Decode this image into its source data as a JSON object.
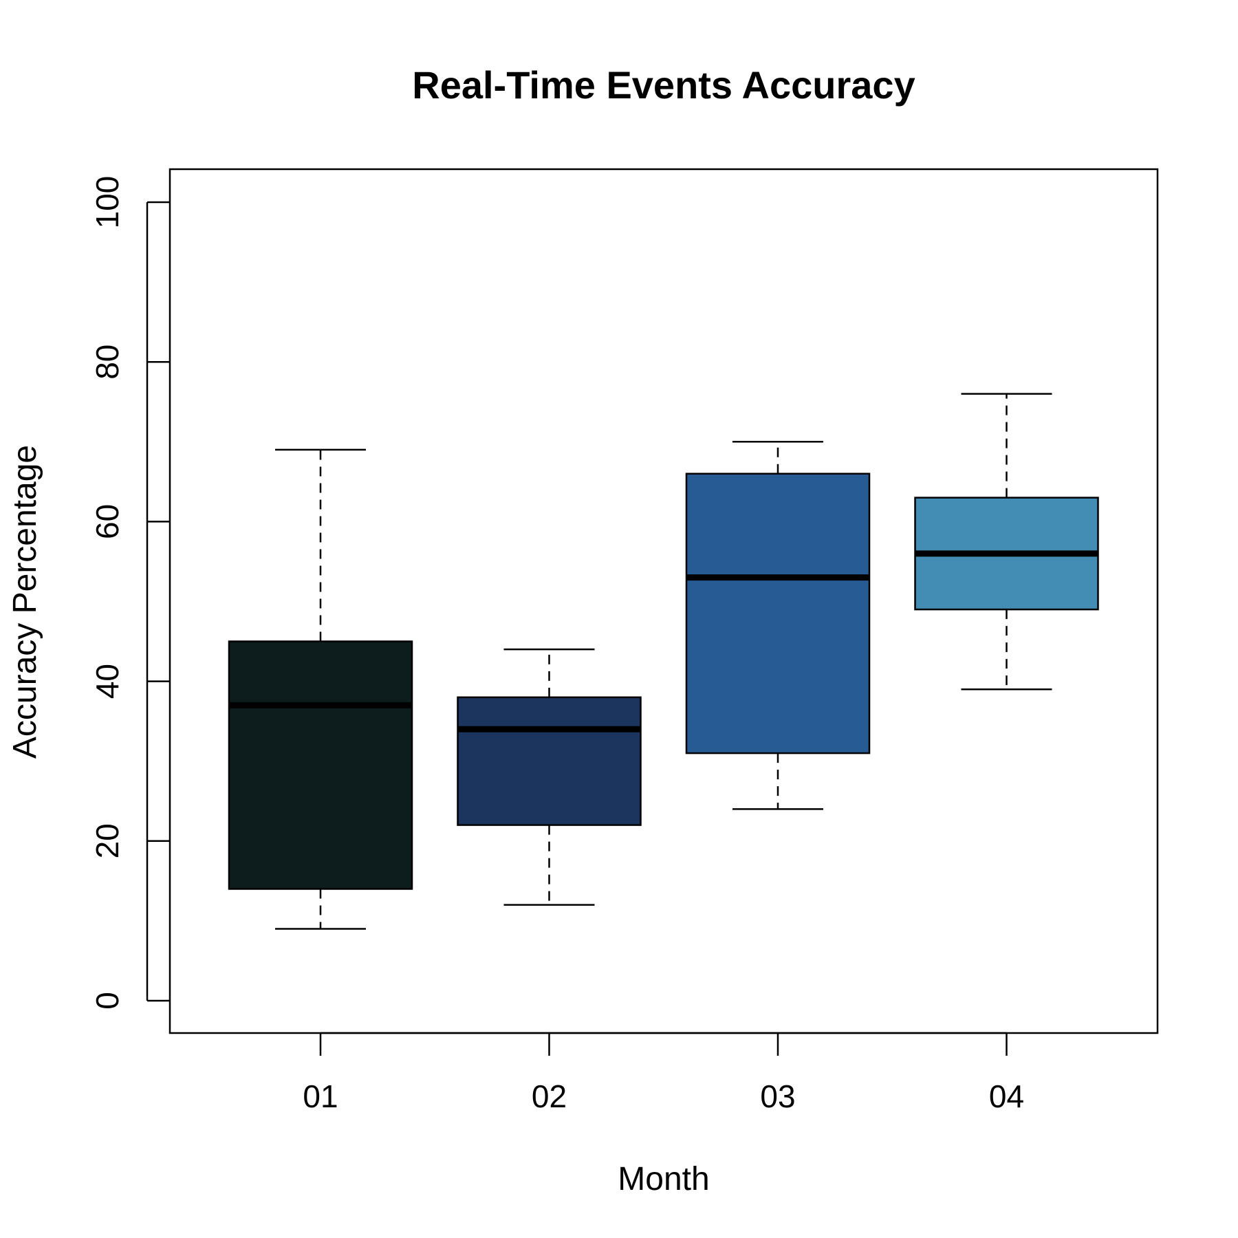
{
  "chart_data": {
    "type": "boxplot",
    "title": "Real-Time Events Accuracy",
    "xlabel": "Month",
    "ylabel": "Accuracy Percentage",
    "ylim": [
      -4,
      104
    ],
    "yticks": [
      0,
      20,
      40,
      60,
      80,
      100
    ],
    "grid": false,
    "categories": [
      "01",
      "02",
      "03",
      "04"
    ],
    "boxes": [
      {
        "category": "01",
        "min": 9,
        "q1": 14,
        "median": 37,
        "q3": 45,
        "max": 69,
        "color": "#0d1c1c"
      },
      {
        "category": "02",
        "min": 12,
        "q1": 22,
        "median": 34,
        "q3": 38,
        "max": 44,
        "color": "#1b355f"
      },
      {
        "category": "03",
        "min": 24,
        "q1": 31,
        "median": 53,
        "q3": 66,
        "max": 70,
        "color": "#265b94"
      },
      {
        "category": "04",
        "min": 39,
        "q1": 49,
        "median": 56,
        "q3": 63,
        "max": 76,
        "color": "#438cb3"
      }
    ]
  }
}
